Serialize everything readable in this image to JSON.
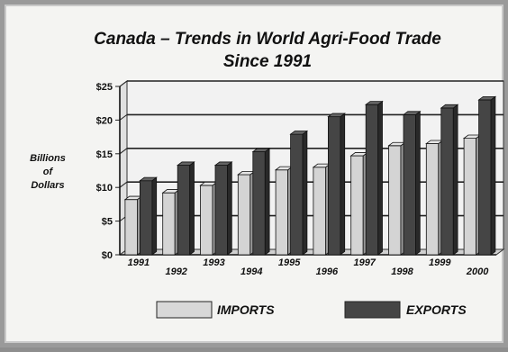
{
  "chart_data": {
    "type": "bar",
    "title_lines": [
      "Canada – Trends in World Agri-Food Trade",
      "Since 1991"
    ],
    "ylabel_lines": [
      "Billions",
      "of",
      "Dollars"
    ],
    "ylim": [
      0,
      25
    ],
    "yticks": [
      "$0",
      "$5",
      "$10",
      "$15",
      "$20",
      "$25"
    ],
    "ytick_values": [
      0,
      5,
      10,
      15,
      20,
      25
    ],
    "grid": "horizontal",
    "legend_position": "bottom",
    "categories": [
      "1991",
      "1992",
      "1993",
      "1994",
      "1995",
      "1996",
      "1997",
      "1998",
      "1999",
      "2000"
    ],
    "series": [
      {
        "name": "IMPORTS",
        "color": "#d4d4d4",
        "values": [
          8.2,
          9.2,
          10.3,
          11.9,
          12.6,
          13.0,
          14.7,
          16.2,
          16.5,
          17.3
        ]
      },
      {
        "name": "EXPORTS",
        "color": "#454545",
        "values": [
          11.0,
          13.3,
          13.3,
          15.3,
          17.9,
          20.5,
          22.3,
          20.8,
          21.8,
          23.0
        ]
      }
    ]
  }
}
